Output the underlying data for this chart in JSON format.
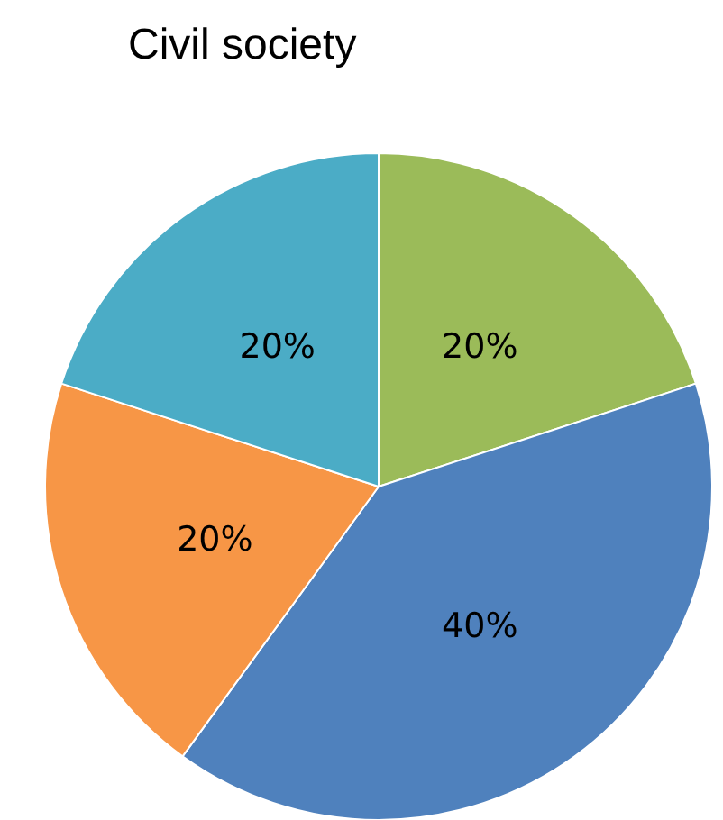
{
  "chart_data": {
    "type": "pie",
    "title": "Civil society",
    "categories": [
      null,
      null,
      null,
      null
    ],
    "values": [
      20,
      40,
      20,
      20
    ],
    "value_labels": [
      "20%",
      "40%",
      "20%",
      "20%"
    ],
    "colors": [
      "#9bbb59",
      "#4f81bd",
      "#f79646",
      "#4bacc6"
    ]
  }
}
